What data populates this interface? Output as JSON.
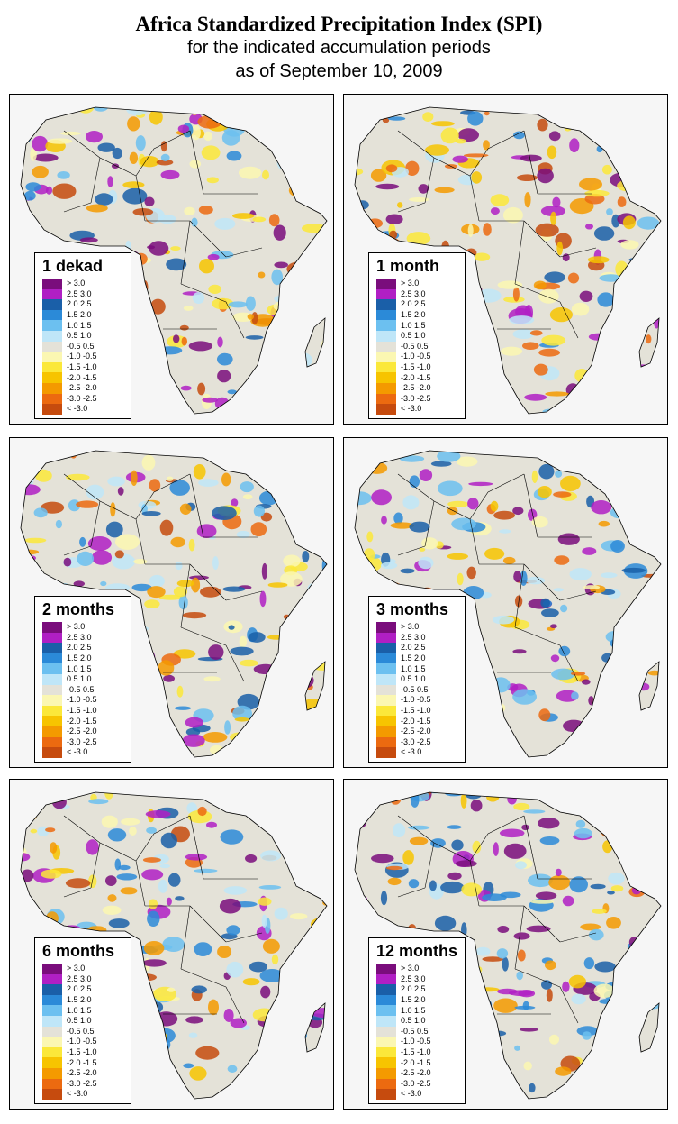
{
  "title": {
    "line1": "Africa Standardized Precipitation Index (SPI)",
    "line2": "for the indicated accumulation periods",
    "line3": "as of September 10, 2009"
  },
  "legend": [
    {
      "label": "  > 3.0",
      "color": "#7a0d7c"
    },
    {
      "label": "2.5  3.0",
      "color": "#b01fc4"
    },
    {
      "label": "2.0  2.5",
      "color": "#1a5fa8"
    },
    {
      "label": "1.5  2.0",
      "color": "#2b8ad8"
    },
    {
      "label": "1.0  1.5",
      "color": "#6cc0f0"
    },
    {
      "label": "0.5  1.0",
      "color": "#bfe6f8"
    },
    {
      "label": "-0.5  0.5",
      "color": "#e4e2d8"
    },
    {
      "label": "-1.0 -0.5",
      "color": "#fbf7b2"
    },
    {
      "label": "-1.5 -1.0",
      "color": "#fbe83a"
    },
    {
      "label": "-2.0 -1.5",
      "color": "#f7c400"
    },
    {
      "label": "-2.5 -2.0",
      "color": "#f49a00"
    },
    {
      "label": "-3.0 -2.5",
      "color": "#ec6a10"
    },
    {
      "label": "  < -3.0",
      "color": "#c64b0e"
    }
  ],
  "panels": [
    {
      "label": "1 dekad"
    },
    {
      "label": "1 month"
    },
    {
      "label": "2 months"
    },
    {
      "label": "3 months"
    },
    {
      "label": "6 months"
    },
    {
      "label": "12 months"
    }
  ],
  "colors": {
    "land": "#e4e2d8",
    "ocean": "#f6f6f6",
    "border": "#000000"
  }
}
